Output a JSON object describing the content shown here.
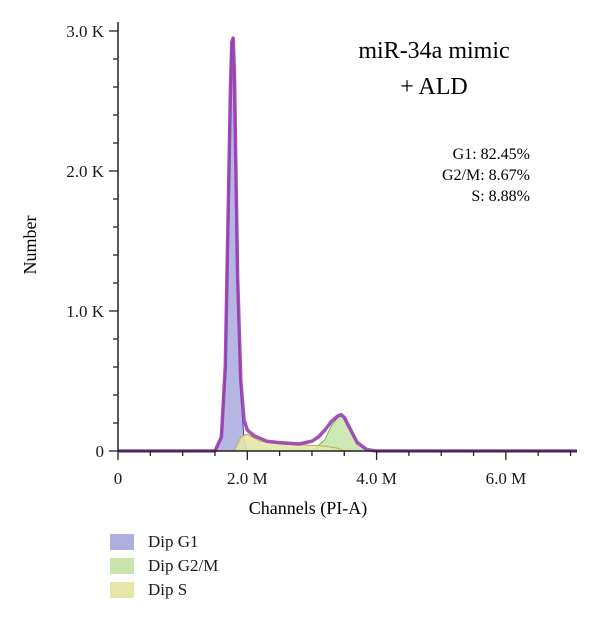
{
  "chart_data": {
    "type": "area",
    "title_lines": [
      "miR-34a mimic",
      "+ ALD"
    ],
    "annotations": [
      "G1: 82.45%",
      "G2/M: 8.67%",
      "S: 8.88%"
    ],
    "xlabel": "Channels (PI-A)",
    "ylabel": "Number",
    "xlim": [
      0,
      7.1
    ],
    "ylim": [
      0,
      3.0
    ],
    "x_ticks": [
      {
        "value": 0,
        "label": "0"
      },
      {
        "value": 2,
        "label": "2.0 M"
      },
      {
        "value": 4,
        "label": "4.0 M"
      },
      {
        "value": 6,
        "label": "6.0 M"
      }
    ],
    "y_ticks": [
      {
        "value": 0,
        "label": "0"
      },
      {
        "value": 1,
        "label": "1.0 K"
      },
      {
        "value": 2,
        "label": "2.0 K"
      },
      {
        "value": 3,
        "label": "3.0 K"
      }
    ],
    "x_unit": "M",
    "y_unit": "K",
    "series": [
      {
        "name": "Dip G1",
        "color": "#aeaee0",
        "stroke": "#3c3cb4",
        "x": [
          1.5,
          1.6,
          1.66,
          1.7,
          1.74,
          1.76,
          1.78,
          1.8,
          1.82,
          1.85,
          1.9,
          1.95,
          2.0
        ],
        "y": [
          0.0,
          0.1,
          0.6,
          1.6,
          2.6,
          2.92,
          2.95,
          2.7,
          2.1,
          1.2,
          0.4,
          0.08,
          0.0
        ]
      },
      {
        "name": "Dip G2/M",
        "color": "#c9e5ad",
        "stroke": "#7ab44a",
        "x": [
          3.0,
          3.2,
          3.3,
          3.4,
          3.45,
          3.5,
          3.6,
          3.7,
          3.85
        ],
        "y": [
          0.0,
          0.08,
          0.18,
          0.24,
          0.25,
          0.23,
          0.14,
          0.05,
          0.0
        ]
      },
      {
        "name": "Dip S",
        "color": "#e6e6a8",
        "stroke": "#b4b450",
        "x": [
          1.8,
          1.9,
          2.0,
          2.2,
          2.5,
          2.8,
          3.0,
          3.2,
          3.4,
          3.5
        ],
        "y": [
          0.0,
          0.1,
          0.12,
          0.07,
          0.05,
          0.045,
          0.04,
          0.035,
          0.02,
          0.0
        ]
      },
      {
        "name": "Total",
        "color": "#9a3db0",
        "x": [
          0.0,
          1.5,
          1.6,
          1.66,
          1.7,
          1.74,
          1.76,
          1.78,
          1.8,
          1.82,
          1.85,
          1.9,
          1.95,
          2.0,
          2.1,
          2.3,
          2.5,
          2.8,
          3.0,
          3.1,
          3.2,
          3.3,
          3.4,
          3.45,
          3.5,
          3.6,
          3.7,
          3.85,
          4.0,
          7.1
        ],
        "y": [
          0.0,
          0.0,
          0.1,
          0.6,
          1.6,
          2.6,
          2.92,
          2.95,
          2.7,
          2.1,
          1.25,
          0.5,
          0.22,
          0.15,
          0.11,
          0.07,
          0.06,
          0.05,
          0.07,
          0.1,
          0.15,
          0.21,
          0.25,
          0.26,
          0.24,
          0.15,
          0.06,
          0.01,
          0.0,
          0.0
        ]
      }
    ],
    "legend": [
      "Dip G1",
      "Dip G2/M",
      "Dip S"
    ],
    "legend_placement": "bottom-left",
    "grid": false
  }
}
